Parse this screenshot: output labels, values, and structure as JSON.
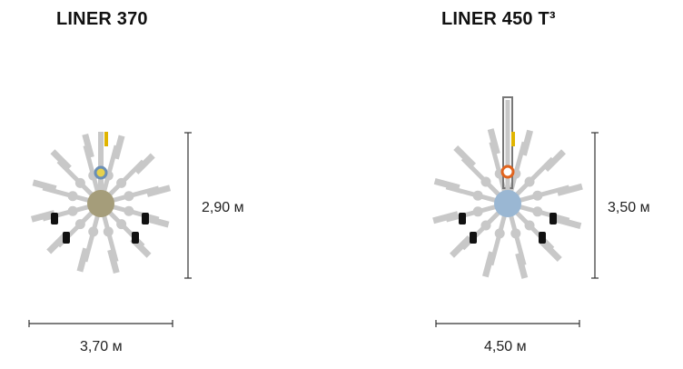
{
  "models": [
    {
      "name": "LINER 370",
      "height_label": "2,90 м",
      "width_label": "3,70 м",
      "hub_color": "#a59d7a",
      "ring_color": "#6b8fb5",
      "ring_fill": "#e6d14d"
    },
    {
      "name": "LINER 450 T³",
      "height_label": "3,50 м",
      "width_label": "4,50 м",
      "hub_color": "#9ab7d3",
      "ring_color": "#e0641e",
      "ring_fill": "#ffffff"
    }
  ],
  "colors": {
    "arm": "#c8c8c8",
    "wheel": "#111111",
    "marker": "#e0b400",
    "dim_line": "#333333"
  }
}
